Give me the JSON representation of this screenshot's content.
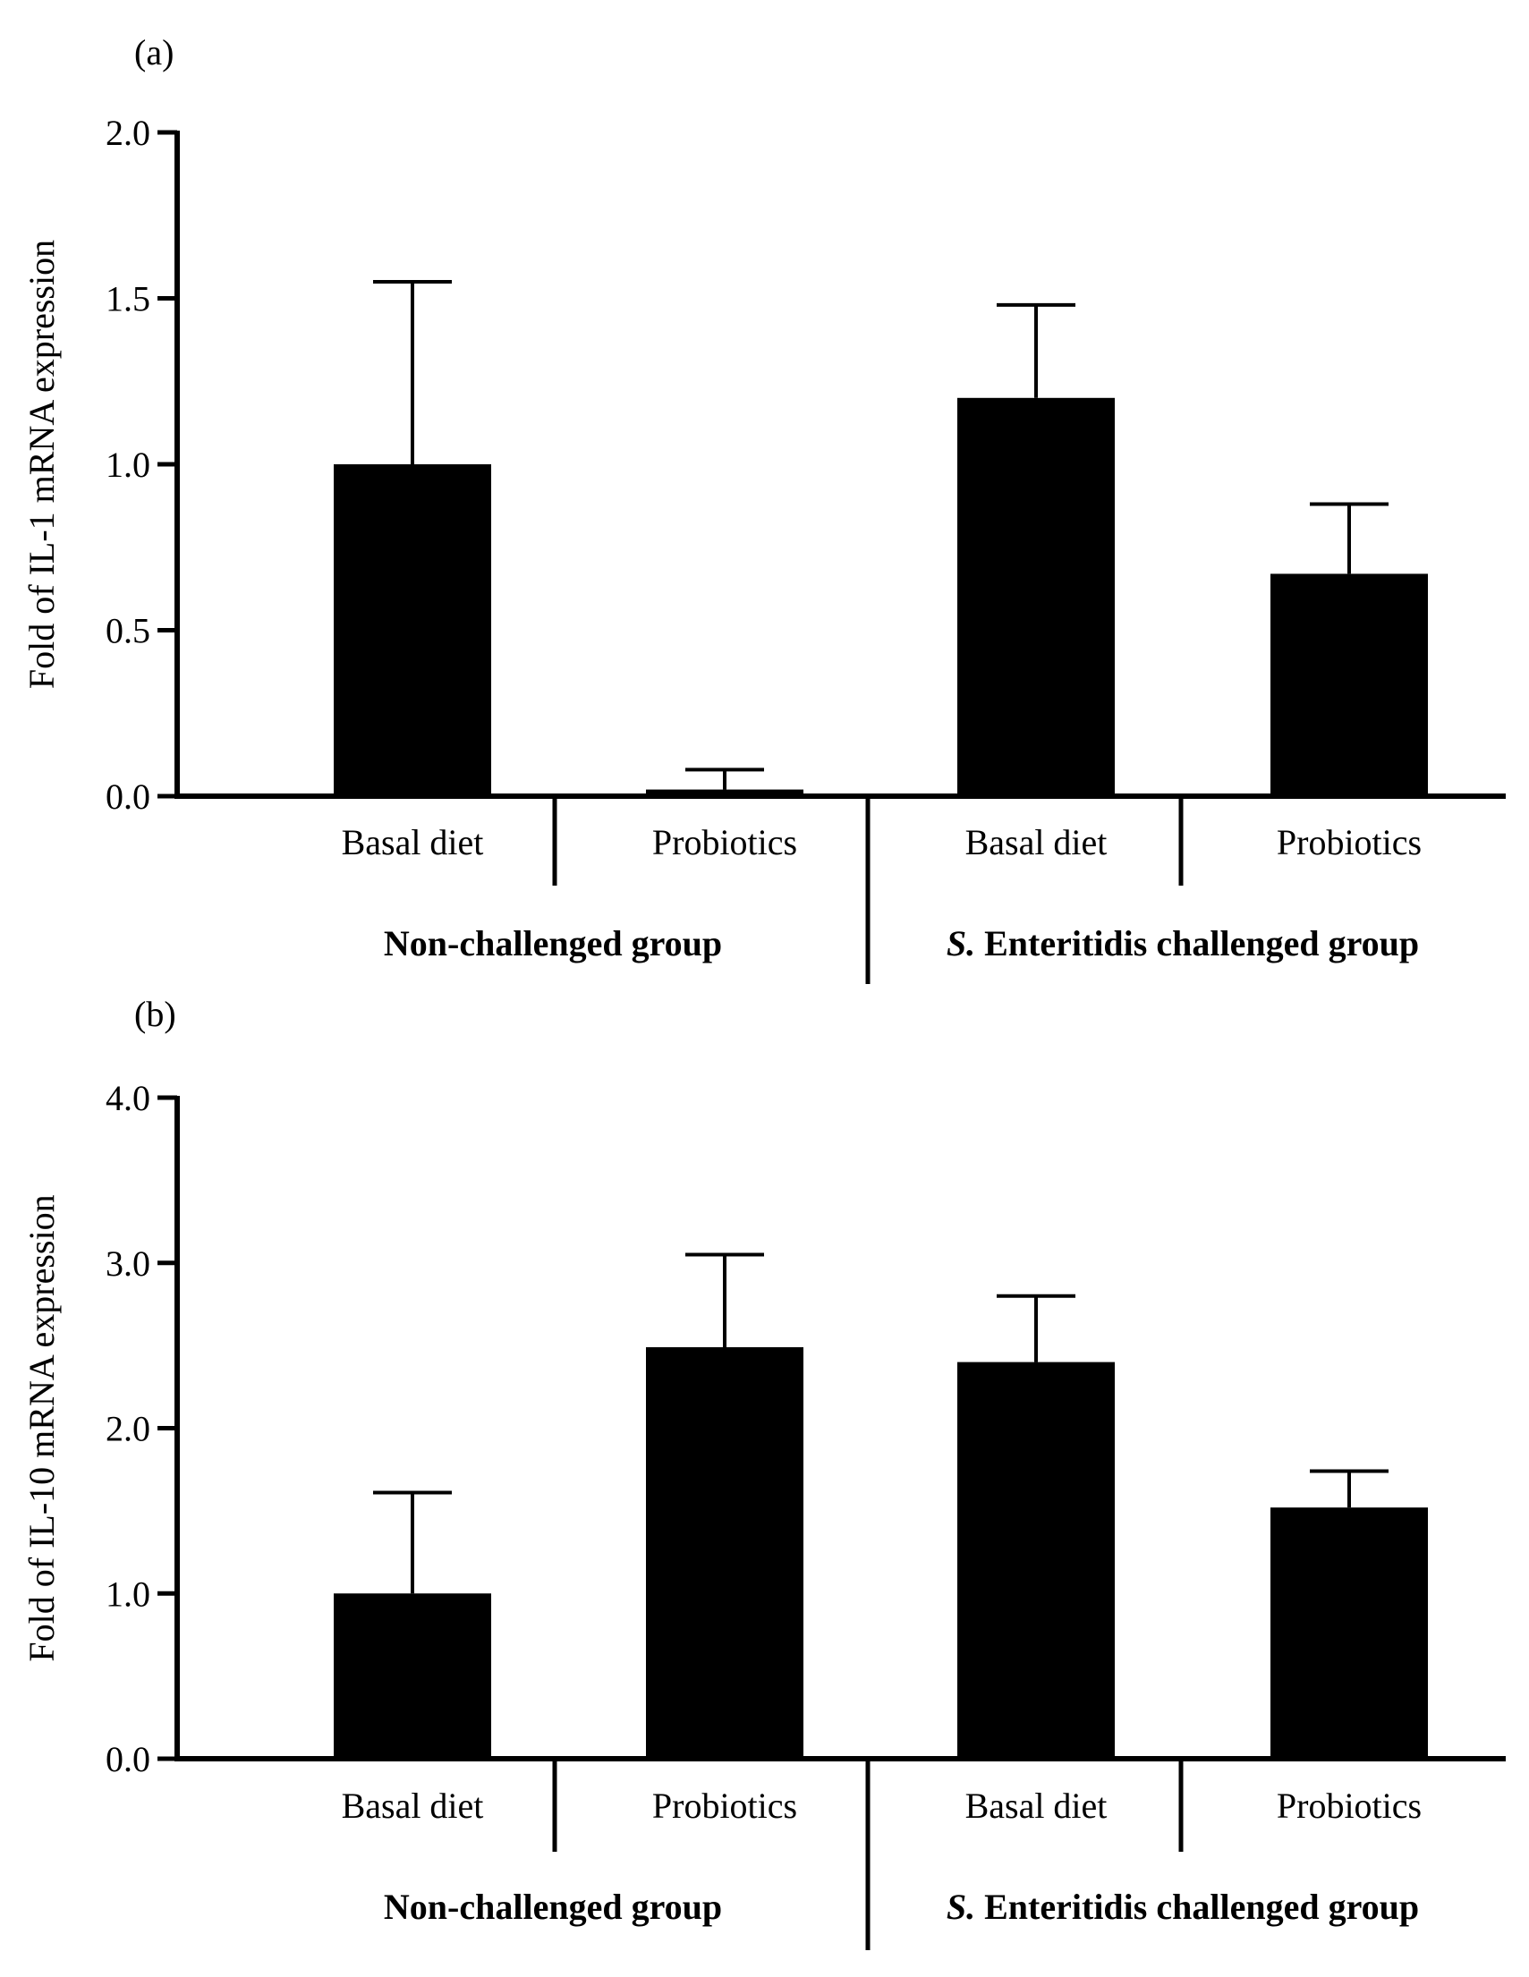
{
  "chart_data": [
    {
      "type": "bar",
      "panel_label": "(a)",
      "ylabel": "Fold of IL-1 mRNA expression",
      "ylim": [
        0,
        2.0
      ],
      "yticks": [
        "0.0",
        "0.5",
        "1.0",
        "1.5",
        "2.0"
      ],
      "categories": [
        "Basal diet",
        "Probiotics",
        "Basal diet",
        "Probiotics"
      ],
      "groups": [
        {
          "prefix": "",
          "name": "Non-challenged group"
        },
        {
          "prefix": "S.",
          "name": " Enteritidis challenged group"
        }
      ],
      "values": [
        1.0,
        0.02,
        1.2,
        0.67
      ],
      "error_upper": [
        1.55,
        0.08,
        1.48,
        0.88
      ]
    },
    {
      "type": "bar",
      "panel_label": "(b)",
      "ylabel": "Fold of IL-10 mRNA expression",
      "ylim": [
        0,
        4.0
      ],
      "yticks": [
        "0.0",
        "1.0",
        "2.0",
        "3.0",
        "4.0"
      ],
      "categories": [
        "Basal diet",
        "Probiotics",
        "Basal diet",
        "Probiotics"
      ],
      "groups": [
        {
          "prefix": "",
          "name": "Non-challenged group"
        },
        {
          "prefix": "S.",
          "name": " Enteritidis challenged group"
        }
      ],
      "values": [
        1.0,
        2.49,
        2.4,
        1.52
      ],
      "error_upper": [
        1.61,
        3.05,
        2.8,
        1.74
      ]
    }
  ],
  "colors": {
    "bar": "#000000",
    "axis": "#000000",
    "background": "#ffffff"
  }
}
